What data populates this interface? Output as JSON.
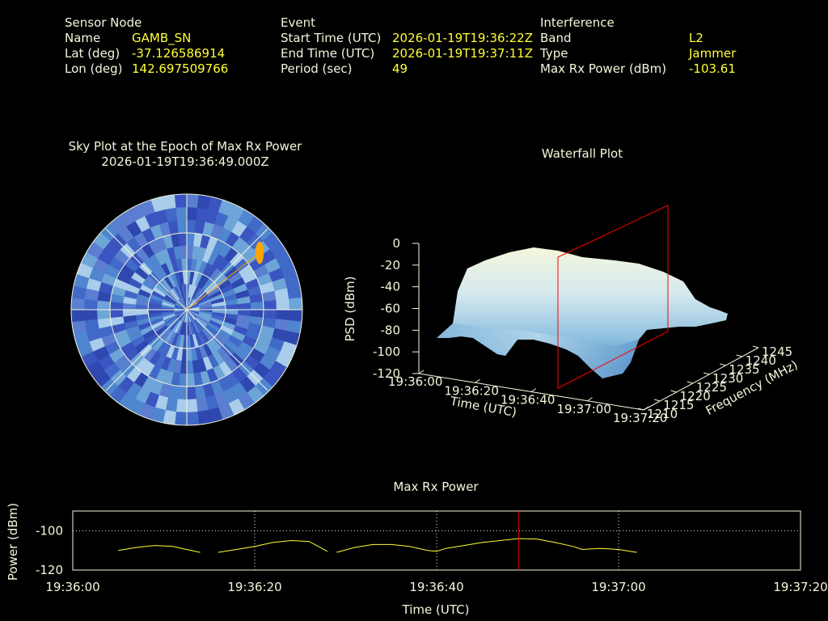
{
  "sensor": {
    "heading": "Sensor Node",
    "name_label": "Name",
    "name": "GAMB_SN",
    "lat_label": "Lat (deg)",
    "lat": "-37.126586914",
    "lon_label": "Lon (deg)",
    "lon": "142.697509766"
  },
  "event": {
    "heading": "Event",
    "start_label": "Start Time (UTC)",
    "start": "2026-01-19T19:36:22Z",
    "end_label": "End Time (UTC)",
    "end": "2026-01-19T19:37:11Z",
    "period_label": "Period (sec)",
    "period": "49"
  },
  "interference": {
    "heading": "Interference",
    "band_label": "Band",
    "band": "L2",
    "type_label": "Type",
    "type": "Jammer",
    "max_label": "Max Rx Power (dBm)",
    "max": "-103.61"
  },
  "colors": {
    "text": "#f5f5dc",
    "value": "#ffff33",
    "marker": "#ff0000",
    "trace": "#ffff33",
    "hotspot": "#ffa500"
  },
  "chart_data": [
    {
      "type": "heatmap",
      "title": "Sky Plot at the Epoch of Max Rx Power",
      "subtitle": "2026-01-19T19:36:49.000Z",
      "hotspot": {
        "azimuth_deg": 52,
        "elevation_deg": 18
      }
    },
    {
      "type": "area",
      "title": "Waterfall Plot",
      "xlabel": "Time (UTC)",
      "ylabel": "Frequency (MHz)",
      "zlabel": "PSD (dBm)",
      "x_ticks": [
        "19:36:00",
        "19:36:20",
        "19:36:40",
        "19:37:00",
        "19:37:20"
      ],
      "y_ticks": [
        "1210",
        "1215",
        "1220",
        "1225",
        "1230",
        "1235",
        "1240",
        "1245"
      ],
      "z_ticks": [
        "0",
        "-20",
        "-40",
        "-60",
        "-80",
        "-100",
        "-120"
      ],
      "zlim": [
        -120,
        0
      ],
      "marker_time": "19:36:49"
    },
    {
      "type": "line",
      "title": "Max Rx Power",
      "xlabel": "Time (UTC)",
      "ylabel": "Power (dBm)",
      "x_ticks": [
        "19:36:00",
        "19:36:20",
        "19:36:40",
        "19:37:00",
        "19:37:20"
      ],
      "xlim_sec": [
        0,
        80
      ],
      "y_ticks": [
        "-100",
        "-120"
      ],
      "ylim": [
        -120,
        -90
      ],
      "marker_sec": 49,
      "segments": [
        [
          [
            5,
            -110
          ],
          [
            7,
            -108.5
          ],
          [
            9,
            -107.5
          ],
          [
            11,
            -108
          ],
          [
            13,
            -110
          ],
          [
            14,
            -111
          ]
        ],
        [
          [
            16,
            -111
          ],
          [
            18,
            -109.5
          ],
          [
            20,
            -108
          ],
          [
            22,
            -106
          ],
          [
            24,
            -105
          ],
          [
            26,
            -105.5
          ],
          [
            27,
            -108
          ],
          [
            28,
            -110.5
          ]
        ],
        [
          [
            29,
            -111
          ],
          [
            31,
            -108.5
          ],
          [
            33,
            -107
          ],
          [
            35,
            -107
          ],
          [
            37,
            -108
          ],
          [
            39,
            -110
          ],
          [
            40,
            -110.5
          ],
          [
            41,
            -109
          ],
          [
            43,
            -107.5
          ],
          [
            45,
            -106
          ],
          [
            47,
            -105
          ],
          [
            49,
            -104
          ],
          [
            51,
            -104.2
          ],
          [
            53,
            -106
          ],
          [
            55,
            -108
          ],
          [
            56,
            -109.5
          ],
          [
            58,
            -109
          ],
          [
            60,
            -109.5
          ],
          [
            62,
            -111
          ]
        ]
      ]
    }
  ]
}
